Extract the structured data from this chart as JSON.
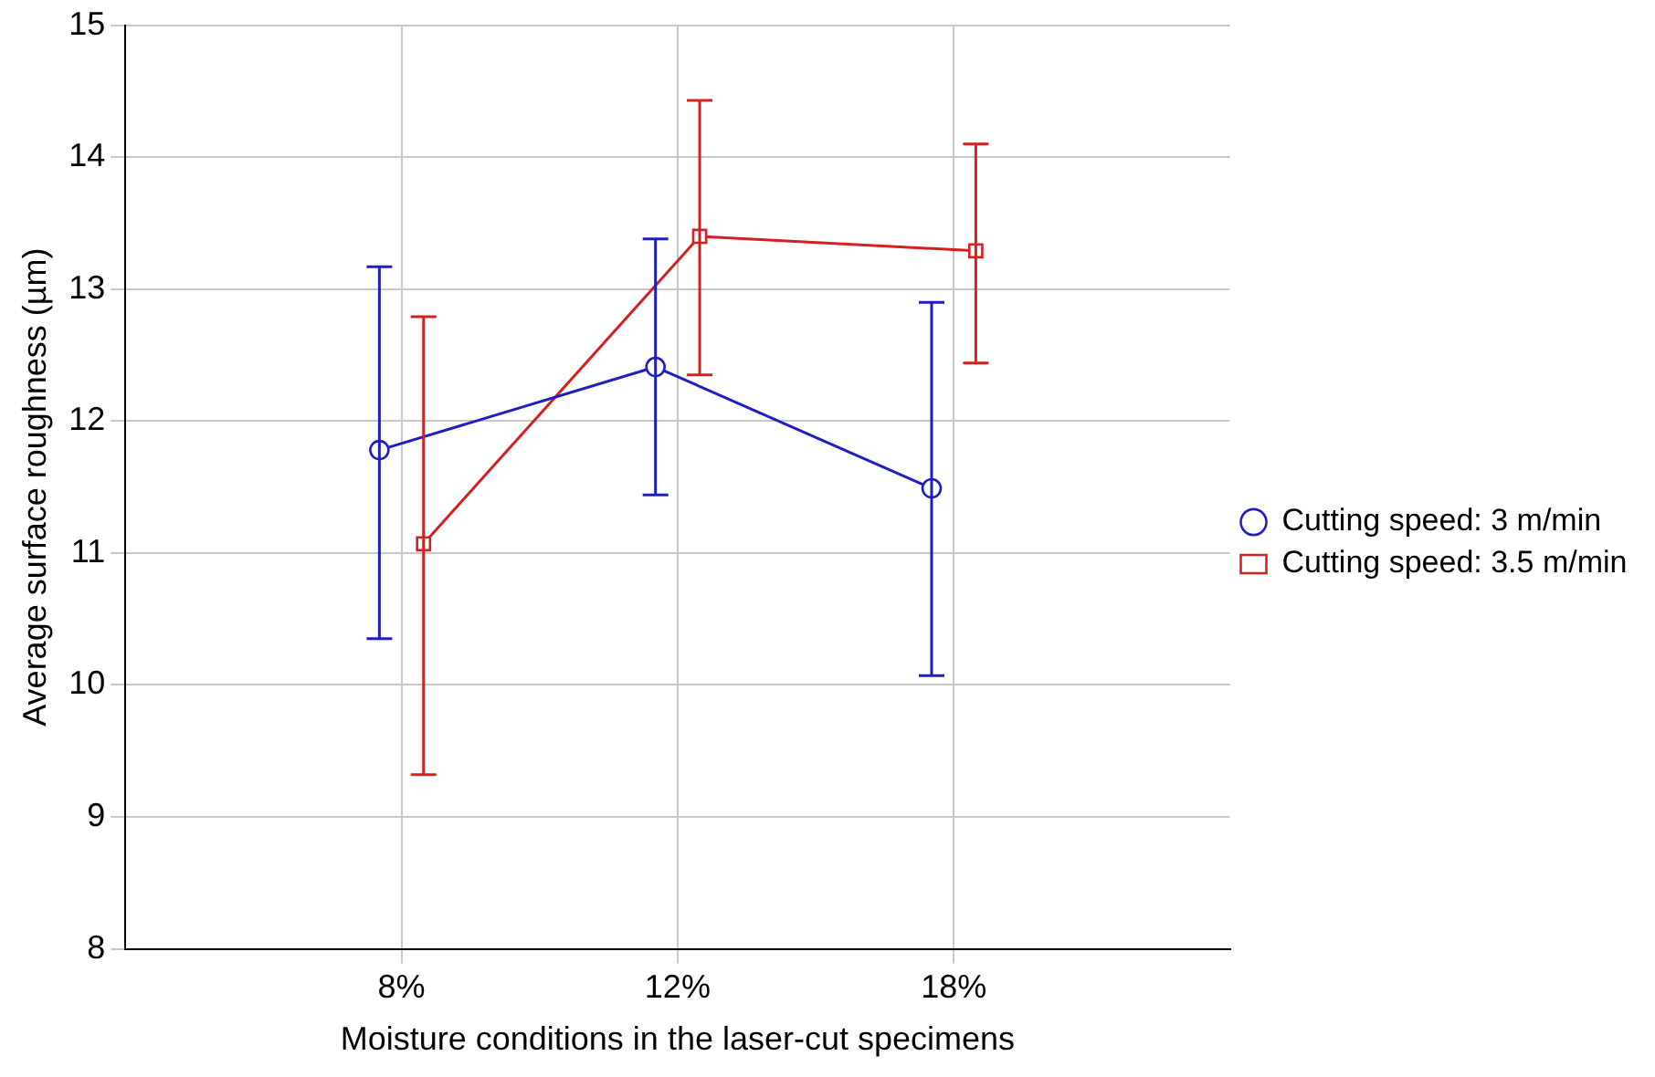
{
  "chart_data": {
    "type": "line",
    "xlabel": "Moisture conditions in the laser-cut specimens",
    "ylabel": "Average surface roughness (µm)",
    "categories": [
      "8%",
      "12%",
      "18%"
    ],
    "series": [
      {
        "name": "Cutting speed: 3 m/min",
        "color": "#1f1fbf",
        "marker": "circle",
        "values": [
          11.78,
          12.41,
          11.49
        ],
        "errors": [
          [
            10.35,
            13.17
          ],
          [
            11.44,
            13.38
          ],
          [
            10.07,
            12.9
          ]
        ]
      },
      {
        "name": "Cutting speed: 3.5 m/min",
        "color": "#d42020",
        "marker": "square",
        "values": [
          11.07,
          13.4,
          13.29
        ],
        "errors": [
          [
            9.32,
            12.79
          ],
          [
            12.35,
            14.43
          ],
          [
            12.44,
            14.1
          ]
        ]
      }
    ],
    "ylim": [
      8,
      15
    ],
    "yticks": [
      8,
      9,
      10,
      11,
      12,
      13,
      14,
      15
    ],
    "grid": true,
    "legend": "right",
    "line_style": "solid"
  }
}
